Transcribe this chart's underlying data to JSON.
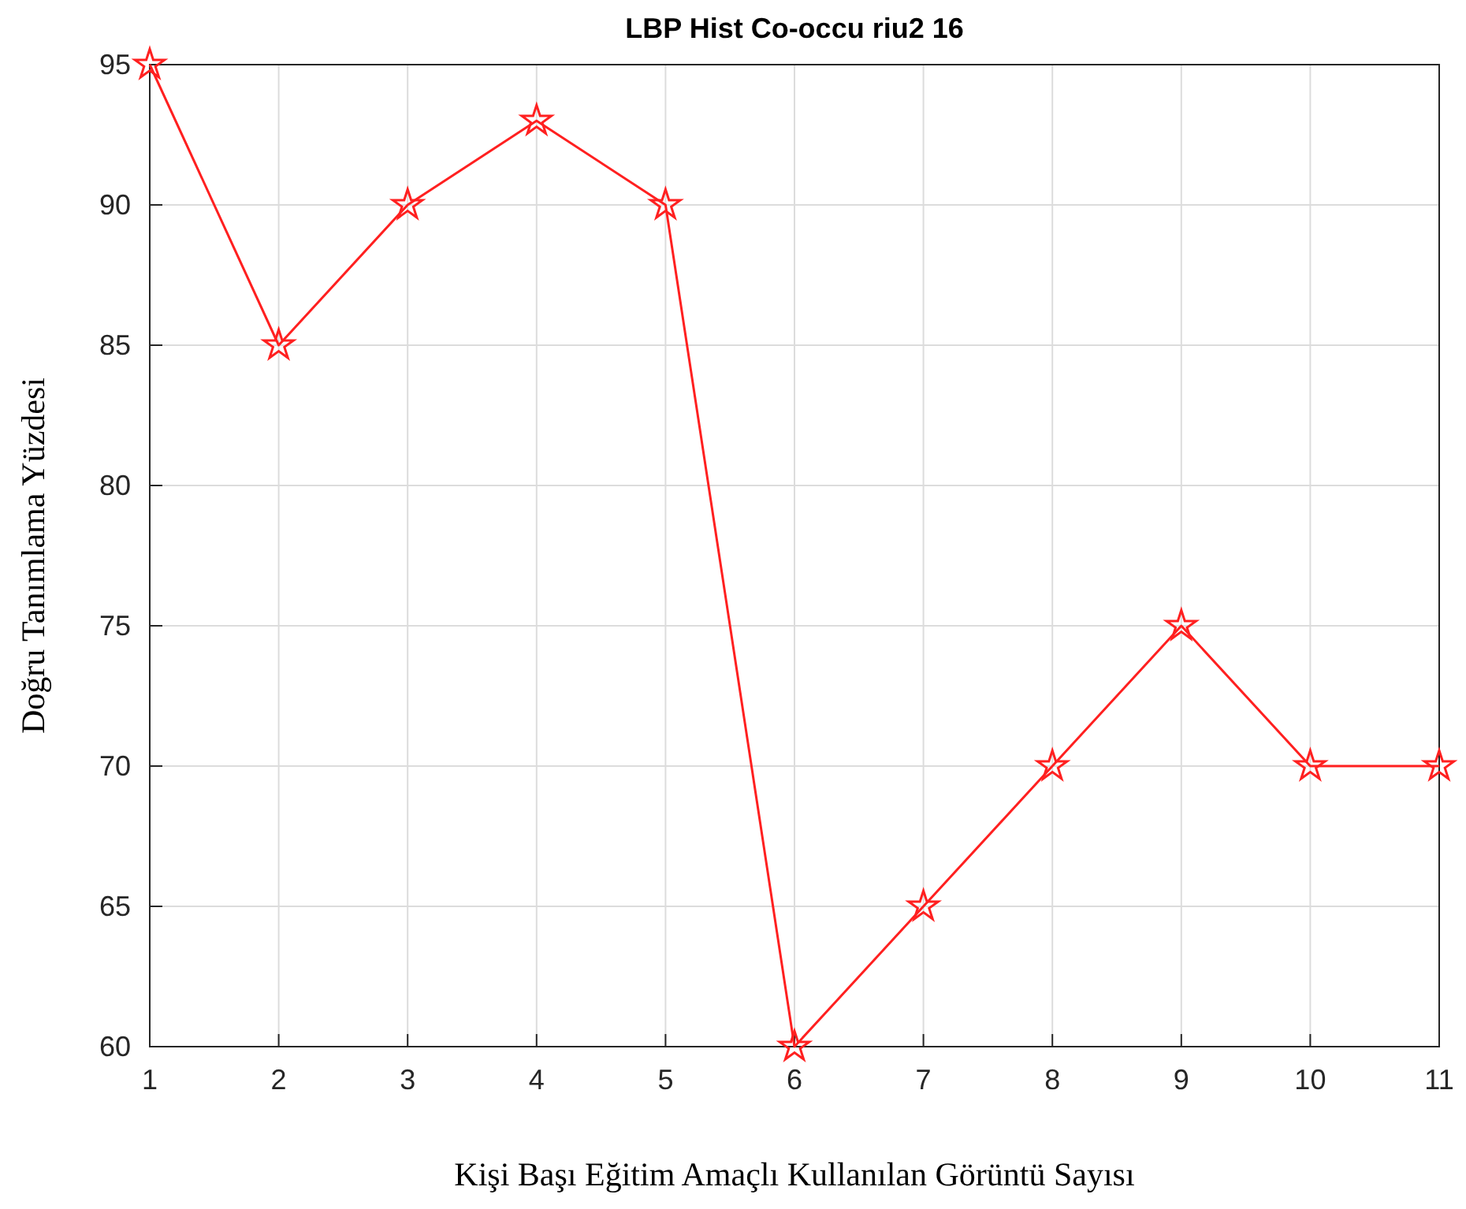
{
  "chart_data": {
    "type": "line",
    "title": "LBP Hist Co-occu riu2 16",
    "xlabel": "Kişi Başı Eğitim Amaçlı Kullanılan Görüntü Sayısı",
    "ylabel": "Doğru Tanımlama Yüzdesi",
    "x": [
      1,
      2,
      3,
      4,
      5,
      6,
      7,
      8,
      9,
      10,
      11
    ],
    "series": [
      {
        "color": "#ff2020",
        "values": [
          95,
          85,
          90,
          93,
          90,
          60,
          65,
          70,
          75,
          70,
          70
        ]
      }
    ],
    "xlim": [
      1,
      11
    ],
    "xticks": [
      1,
      2,
      3,
      4,
      5,
      6,
      7,
      8,
      9,
      10,
      11
    ],
    "ylim": [
      60,
      95
    ],
    "yticks": [
      60,
      65,
      70,
      75,
      80,
      85,
      90,
      95
    ],
    "grid": true,
    "marker": "star",
    "line_style": "solid"
  }
}
